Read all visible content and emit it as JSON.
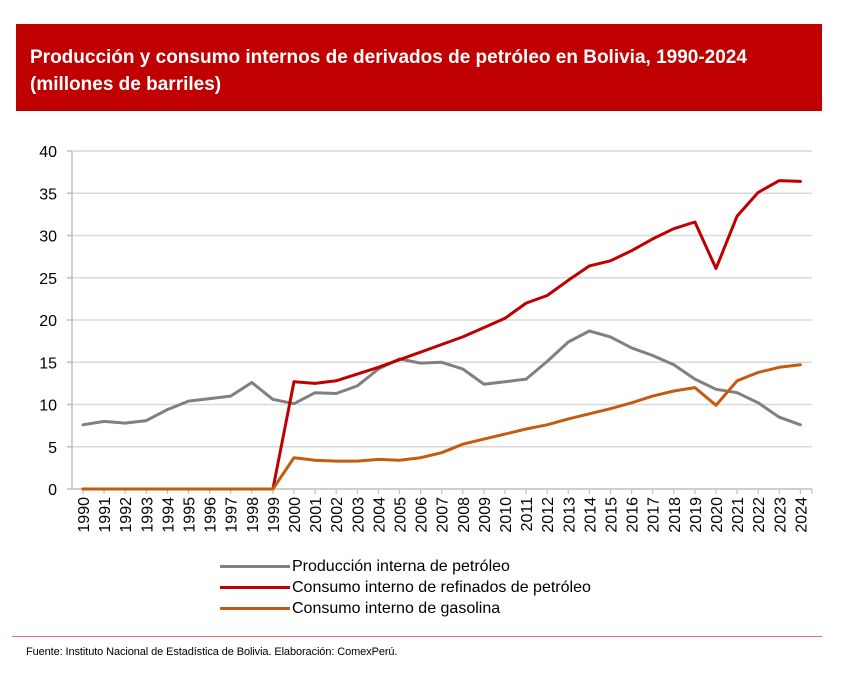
{
  "header": {
    "title_line1": "Producción y consumo internos de derivados de petróleo en Bolivia, 1990-2024",
    "title_line2": "(millones de barriles)"
  },
  "footer": {
    "source": "Fuente: Instituto Nacional de Estadística de Bolivia. Elaboración: ComexPerú."
  },
  "colors": {
    "header_bg": "#c00000",
    "produccion": "#808080",
    "refinados": "#c00000",
    "gasolina": "#c55a11",
    "grid": "#d9d9d9",
    "axis": "#bfbfbf"
  },
  "chart_data": {
    "type": "line",
    "title": "Producción y consumo internos de derivados de petróleo en Bolivia, 1990-2024 (millones de barriles)",
    "xlabel": "",
    "ylabel": "",
    "ylim": [
      0,
      40
    ],
    "yticks": [
      0,
      5,
      10,
      15,
      20,
      25,
      30,
      35,
      40
    ],
    "grid": true,
    "legend_position": "bottom",
    "x": [
      "1990",
      "1991",
      "1992",
      "1993",
      "1994",
      "1995",
      "1996",
      "1997",
      "1998",
      "1999",
      "2000",
      "2001",
      "2002",
      "2003",
      "2004",
      "2005",
      "2006",
      "2007",
      "2008",
      "2009",
      "2010",
      "2011",
      "2012",
      "2013",
      "2014",
      "2015",
      "2016",
      "2017",
      "2018",
      "2019",
      "2020",
      "2021",
      "2022",
      "2023",
      "2024"
    ],
    "series": [
      {
        "name": "Producción interna de petróleo",
        "color": "#808080",
        "values": [
          7.6,
          8.0,
          7.8,
          8.1,
          9.4,
          10.4,
          10.7,
          11.0,
          12.6,
          10.6,
          10.1,
          11.4,
          11.3,
          12.2,
          14.2,
          15.4,
          14.9,
          15.0,
          14.2,
          12.4,
          12.7,
          13.0,
          15.1,
          17.4,
          18.7,
          18.0,
          16.7,
          15.8,
          14.7,
          13.0,
          11.8,
          11.4,
          10.2,
          8.5,
          7.6
        ]
      },
      {
        "name": "Consumo interno de refinados de petróleo",
        "color": "#c00000",
        "values": [
          0,
          0,
          0,
          0,
          0,
          0,
          0,
          0,
          0,
          0,
          12.7,
          12.5,
          12.8,
          13.6,
          14.4,
          15.3,
          16.2,
          17.1,
          18.0,
          19.1,
          20.2,
          22.0,
          22.9,
          24.7,
          26.4,
          27.0,
          28.2,
          29.6,
          30.8,
          31.6,
          26.1,
          32.3,
          35.1,
          36.5,
          36.4
        ]
      },
      {
        "name": "Consumo interno de gasolina",
        "color": "#c55a11",
        "values": [
          0,
          0,
          0,
          0,
          0,
          0,
          0,
          0,
          0,
          0,
          3.7,
          3.4,
          3.3,
          3.3,
          3.5,
          3.4,
          3.7,
          4.3,
          5.3,
          5.9,
          6.5,
          7.1,
          7.6,
          8.3,
          8.9,
          9.5,
          10.2,
          11.0,
          11.6,
          12.0,
          9.9,
          12.8,
          13.8,
          14.4,
          14.7
        ]
      }
    ]
  }
}
